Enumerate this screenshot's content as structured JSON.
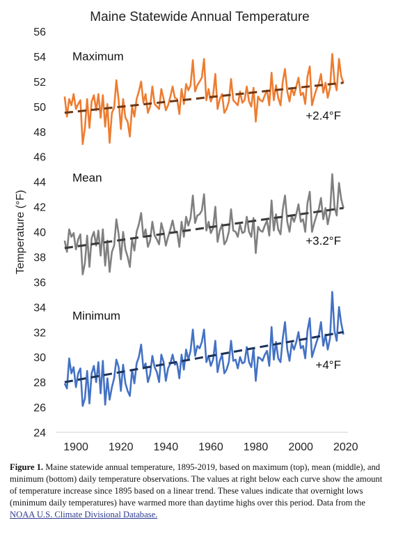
{
  "chart_data": {
    "type": "line",
    "title": "Maine Statewide Annual Temperature",
    "ylabel": "Temperature (°F)",
    "xlabel": "",
    "xlim": [
      1891,
      2021
    ],
    "ylim": [
      24,
      56
    ],
    "x_ticks": [
      1900,
      1920,
      1940,
      1960,
      1980,
      2000,
      2020
    ],
    "y_ticks": [
      24,
      26,
      28,
      30,
      32,
      34,
      36,
      38,
      40,
      42,
      44,
      46,
      48,
      50,
      52,
      54,
      56
    ],
    "grid": false,
    "legend": "none",
    "start_year": 1895,
    "series": [
      {
        "name": "Maximum",
        "color": "#ed7d31",
        "trend_label": "+2.4°F",
        "trend": [
          [
            1895,
            49.5
          ],
          [
            2019,
            51.9
          ]
        ],
        "values": [
          50.8,
          49.2,
          50.6,
          50.1,
          51.0,
          49.8,
          50.2,
          50.5,
          47.0,
          48.3,
          50.6,
          48.3,
          50.4,
          50.9,
          49.7,
          51.0,
          49.1,
          50.9,
          48.4,
          50.2,
          47.1,
          49.5,
          49.9,
          52.1,
          50.5,
          48.2,
          50.6,
          49.1,
          48.8,
          47.6,
          50.0,
          49.2,
          50.6,
          51.2,
          52.0,
          50.3,
          51.0,
          49.5,
          50.0,
          51.6,
          50.2,
          50.0,
          49.8,
          51.4,
          50.6,
          49.7,
          50.1,
          50.8,
          51.6,
          50.7,
          50.6,
          49.4,
          51.4,
          50.2,
          51.8,
          51.3,
          51.7,
          53.7,
          51.2,
          51.7,
          52.0,
          52.3,
          53.8,
          50.5,
          51.4,
          50.4,
          50.9,
          52.6,
          49.8,
          50.6,
          51.0,
          49.5,
          49.8,
          50.4,
          52.2,
          50.5,
          50.3,
          50.1,
          51.2,
          50.3,
          50.5,
          51.6,
          50.4,
          50.0,
          51.5,
          48.8,
          50.8,
          50.5,
          50.4,
          50.9,
          51.3,
          50.1,
          52.7,
          50.5,
          51.7,
          50.7,
          50.1,
          52.0,
          53.0,
          51.2,
          50.4,
          51.5,
          50.9,
          51.6,
          52.3,
          50.9,
          51.1,
          50.2,
          52.4,
          53.2,
          50.1,
          50.8,
          51.4,
          51.8,
          52.6,
          51.1,
          51.9,
          50.7,
          51.5,
          54.2,
          52.0,
          51.3,
          53.8,
          52.4,
          51.9
        ]
      },
      {
        "name": "Mean",
        "color": "#808080",
        "trend_label": "+3.2°F",
        "trend": [
          [
            1895,
            38.7
          ],
          [
            2019,
            41.9
          ]
        ],
        "values": [
          39.3,
          38.4,
          40.2,
          39.6,
          39.9,
          38.6,
          39.4,
          39.8,
          36.6,
          37.5,
          39.7,
          37.2,
          39.5,
          40.0,
          38.9,
          40.1,
          38.1,
          40.2,
          37.3,
          39.3,
          36.8,
          38.4,
          38.9,
          41.0,
          39.8,
          37.8,
          40.0,
          38.6,
          38.0,
          37.2,
          39.4,
          38.5,
          40.0,
          40.6,
          41.5,
          39.6,
          40.2,
          38.8,
          39.3,
          40.8,
          39.7,
          39.4,
          39.0,
          40.7,
          40.0,
          38.9,
          39.6,
          40.2,
          40.9,
          40.0,
          40.0,
          38.8,
          40.8,
          39.6,
          41.2,
          40.5,
          41.1,
          42.9,
          40.7,
          41.3,
          41.4,
          41.7,
          43.0,
          40.1,
          40.8,
          39.9,
          40.3,
          42.0,
          39.2,
          40.1,
          40.6,
          39.0,
          39.3,
          40.0,
          41.8,
          40.1,
          40.0,
          39.6,
          40.6,
          39.9,
          40.0,
          41.2,
          40.0,
          39.6,
          41.1,
          38.3,
          40.4,
          40.1,
          40.0,
          40.5,
          40.9,
          39.7,
          42.5,
          40.1,
          41.4,
          40.2,
          39.8,
          41.8,
          42.9,
          40.8,
          40.0,
          41.3,
          40.8,
          41.4,
          42.2,
          40.8,
          41.0,
          40.0,
          42.3,
          43.2,
          40.0,
          40.7,
          41.3,
          41.8,
          42.7,
          41.0,
          41.9,
          40.6,
          41.5,
          44.6,
          42.0,
          41.3,
          43.9,
          42.6,
          41.9
        ]
      },
      {
        "name": "Minimum",
        "color": "#4472c4",
        "trend_label": "+4°F",
        "trend": [
          [
            1895,
            28.0
          ],
          [
            2019,
            32.0
          ]
        ],
        "values": [
          27.9,
          27.5,
          29.9,
          28.7,
          29.2,
          27.6,
          28.7,
          29.1,
          26.1,
          26.7,
          28.9,
          26.3,
          28.7,
          29.3,
          28.0,
          29.6,
          27.1,
          29.7,
          26.2,
          28.3,
          26.6,
          27.6,
          28.3,
          29.8,
          29.2,
          27.3,
          29.4,
          27.9,
          27.3,
          26.9,
          29.0,
          27.9,
          29.5,
          30.0,
          31.0,
          29.1,
          29.5,
          28.0,
          28.6,
          30.1,
          29.2,
          28.8,
          28.0,
          30.2,
          29.6,
          28.1,
          29.1,
          29.5,
          30.2,
          29.4,
          29.5,
          28.3,
          30.2,
          29.0,
          30.6,
          29.8,
          30.5,
          32.2,
          30.1,
          30.9,
          30.7,
          31.2,
          32.2,
          29.6,
          30.1,
          29.3,
          29.8,
          31.3,
          28.8,
          29.7,
          30.2,
          28.7,
          29.0,
          29.6,
          31.3,
          29.7,
          29.8,
          29.1,
          30.0,
          29.5,
          29.6,
          30.8,
          29.6,
          29.2,
          30.7,
          28.1,
          30.0,
          29.9,
          29.7,
          30.2,
          30.5,
          29.3,
          32.4,
          29.8,
          31.2,
          29.9,
          29.6,
          31.5,
          32.8,
          30.6,
          29.7,
          31.1,
          30.6,
          31.2,
          32.0,
          30.7,
          30.9,
          29.9,
          32.1,
          33.1,
          30.0,
          30.6,
          31.2,
          31.7,
          32.8,
          30.9,
          31.8,
          30.6,
          31.5,
          35.2,
          32.1,
          31.3,
          34.0,
          32.7,
          31.8
        ]
      }
    ]
  },
  "caption": {
    "label": "Figure 1.",
    "text": " Maine statewide annual temperature, 1895-2019, based on maximum (top), mean (middle), and minimum (bottom) daily temperature observations. The values at right below each curve show the amount of temperature increase since 1895 based on a linear trend. These values indicate that overnight lows (minimum daily temperatures) have warmed more than daytime highs over this period. Data from the ",
    "link_text": "NOAA U.S. Climate Divisional Database."
  }
}
